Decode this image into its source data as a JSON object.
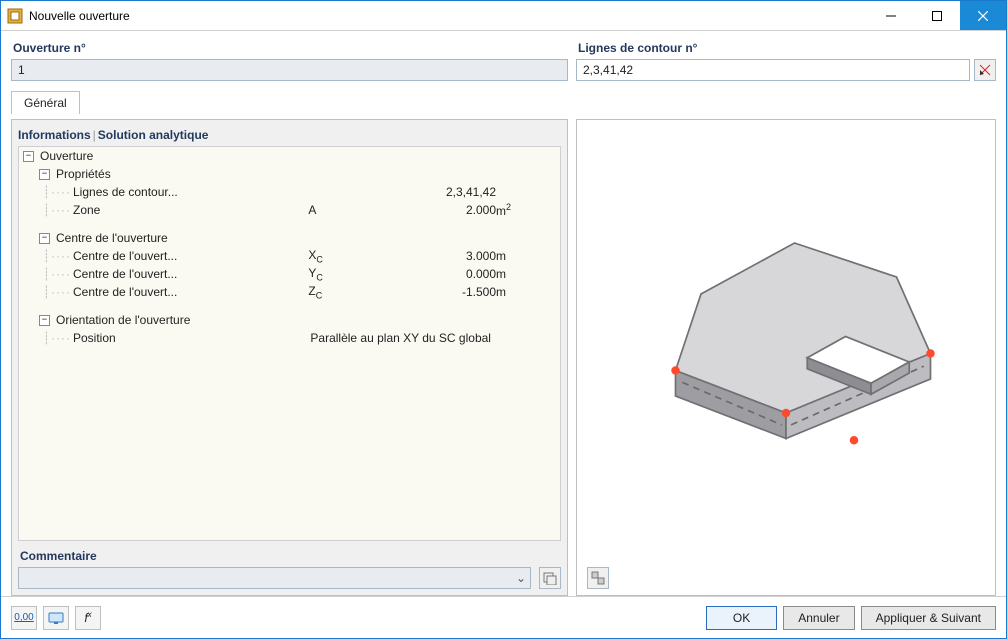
{
  "window": {
    "title": "Nouvelle ouverture"
  },
  "fields": {
    "ouverture_no": {
      "label": "Ouverture n°",
      "value": "1"
    },
    "lignes_contour_no": {
      "label": "Lignes de contour n°",
      "value": "2,3,41,42"
    }
  },
  "tabs": {
    "general": "Général"
  },
  "sections": {
    "header_active": "Informations",
    "header_link": "Solution analytique",
    "ouverture": "Ouverture",
    "proprietes": "Propriétés",
    "centre": "Centre de l'ouverture",
    "orientation": "Orientation de l'ouverture",
    "commentaire": "Commentaire"
  },
  "props": {
    "lignes_contour": {
      "label": "Lignes de contour...",
      "value": "2,3,41,42"
    },
    "zone": {
      "label": "Zone",
      "sym": "A",
      "value": "2.000",
      "unit_html": "m<span class='sup'>2</span>"
    },
    "xc": {
      "label": "Centre de l'ouvert...",
      "sym_html": "X<span class='sub'>C</span>",
      "value": "3.000",
      "unit": "m"
    },
    "yc": {
      "label": "Centre de l'ouvert...",
      "sym_html": "Y<span class='sub'>C</span>",
      "value": "0.000",
      "unit": "m"
    },
    "zc": {
      "label": "Centre de l'ouvert...",
      "sym_html": "Z<span class='sub'>C</span>",
      "value": "-1.500",
      "unit": "m"
    },
    "position": {
      "label": "Position",
      "value": "Parallèle au plan XY du SC global"
    }
  },
  "buttons": {
    "ok": "OK",
    "annuler": "Annuler",
    "appliquer_suivant": "Appliquer & Suivant"
  },
  "colors": {
    "accent": "#23395d",
    "slab_fill": "#d7d7da",
    "slab_side": "#9e9ea2",
    "slab_edge": "#707075",
    "dot": "#ff4a2f"
  }
}
